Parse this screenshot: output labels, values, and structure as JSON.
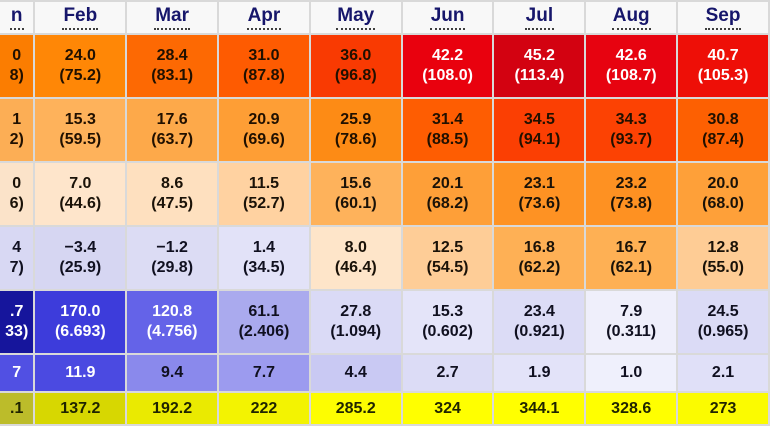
{
  "table": {
    "columns": [
      {
        "id": "jan",
        "label": "n",
        "clipped": "left"
      },
      {
        "id": "feb",
        "label": "Feb"
      },
      {
        "id": "mar",
        "label": "Mar"
      },
      {
        "id": "apr",
        "label": "Apr"
      },
      {
        "id": "may",
        "label": "May"
      },
      {
        "id": "jun",
        "label": "Jun"
      },
      {
        "id": "jul",
        "label": "Jul"
      },
      {
        "id": "aug",
        "label": "Aug"
      },
      {
        "id": "sep",
        "label": "Sep",
        "clipped": "right"
      }
    ],
    "rows": [
      {
        "id": "r1",
        "size": "tall",
        "cells": [
          {
            "line1": "0",
            "line2": "8)",
            "bg": "#fb7d01",
            "fg": "#201000"
          },
          {
            "line1": "24.0",
            "line2": "(75.2)",
            "bg": "#ff8706",
            "fg": "#201000"
          },
          {
            "line1": "28.4",
            "line2": "(83.1)",
            "bg": "#fd6903",
            "fg": "#201000"
          },
          {
            "line1": "31.0",
            "line2": "(87.8)",
            "bg": "#fe5b01",
            "fg": "#201000"
          },
          {
            "line1": "36.0",
            "line2": "(96.8)",
            "bg": "#f93a02",
            "fg": "#201000"
          },
          {
            "line1": "42.2",
            "line2": "(108.0)",
            "bg": "#e9010e",
            "fg": "#ffffff"
          },
          {
            "line1": "45.2",
            "line2": "(113.4)",
            "bg": "#d30211",
            "fg": "#ffffff"
          },
          {
            "line1": "42.6",
            "line2": "(108.7)",
            "bg": "#e70310",
            "fg": "#ffffff"
          },
          {
            "line1": "40.7",
            "line2": "(105.3)",
            "bg": "#ee0f07",
            "fg": "#ffffff"
          }
        ]
      },
      {
        "id": "r2",
        "size": "tall",
        "cells": [
          {
            "line1": "1",
            "line2": "2)",
            "bg": "#fcae55",
            "fg": "#201000"
          },
          {
            "line1": "15.3",
            "line2": "(59.5)",
            "bg": "#feb25b",
            "fg": "#201000"
          },
          {
            "line1": "17.6",
            "line2": "(63.7)",
            "bg": "#fda94a",
            "fg": "#201000"
          },
          {
            "line1": "20.9",
            "line2": "(69.6)",
            "bg": "#fe9e35",
            "fg": "#201000"
          },
          {
            "line1": "25.9",
            "line2": "(78.6)",
            "bg": "#fd8b15",
            "fg": "#201000"
          },
          {
            "line1": "31.4",
            "line2": "(88.5)",
            "bg": "#fe5d02",
            "fg": "#201000"
          },
          {
            "line1": "34.5",
            "line2": "(94.1)",
            "bg": "#fb3f03",
            "fg": "#201000"
          },
          {
            "line1": "34.3",
            "line2": "(93.7)",
            "bg": "#fc4203",
            "fg": "#201000"
          },
          {
            "line1": "30.8",
            "line2": "(87.4)",
            "bg": "#fd6002",
            "fg": "#201000"
          }
        ]
      },
      {
        "id": "r3",
        "size": "tall",
        "cells": [
          {
            "line1": "0",
            "line2": "6)",
            "bg": "#fbe3c9",
            "fg": "#1a1208"
          },
          {
            "line1": "7.0",
            "line2": "(44.6)",
            "bg": "#fee5cb",
            "fg": "#1a1208"
          },
          {
            "line1": "8.6",
            "line2": "(47.5)",
            "bg": "#fee0bf",
            "fg": "#1a1208"
          },
          {
            "line1": "11.5",
            "line2": "(52.7)",
            "bg": "#ffd2a1",
            "fg": "#1a1208"
          },
          {
            "line1": "15.6",
            "line2": "(60.1)",
            "bg": "#feb25b",
            "fg": "#1a1208"
          },
          {
            "line1": "20.1",
            "line2": "(68.2)",
            "bg": "#fe9f38",
            "fg": "#1a1208"
          },
          {
            "line1": "23.1",
            "line2": "(73.6)",
            "bg": "#fe9223",
            "fg": "#1a1208"
          },
          {
            "line1": "23.2",
            "line2": "(73.8)",
            "bg": "#fe9122",
            "fg": "#1a1208"
          },
          {
            "line1": "20.0",
            "line2": "(68.0)",
            "bg": "#fea039",
            "fg": "#1a1208"
          }
        ]
      },
      {
        "id": "r4",
        "size": "tall",
        "cells": [
          {
            "line1": "4",
            "line2": "7)",
            "bg": "#d8d8f3",
            "fg": "#101020"
          },
          {
            "line1": "−3.4",
            "line2": "(25.9)",
            "bg": "#d6d6f2",
            "fg": "#101020"
          },
          {
            "line1": "−1.2",
            "line2": "(29.8)",
            "bg": "#dcdcf4",
            "fg": "#101020"
          },
          {
            "line1": "1.4",
            "line2": "(34.5)",
            "bg": "#e2e2f8",
            "fg": "#101020"
          },
          {
            "line1": "8.0",
            "line2": "(46.4)",
            "bg": "#fee5c9",
            "fg": "#1a1208"
          },
          {
            "line1": "12.5",
            "line2": "(54.5)",
            "bg": "#fecd97",
            "fg": "#1a1208"
          },
          {
            "line1": "16.8",
            "line2": "(62.2)",
            "bg": "#feb055",
            "fg": "#1a1208"
          },
          {
            "line1": "16.7",
            "line2": "(62.1)",
            "bg": "#feb054",
            "fg": "#1a1208"
          },
          {
            "line1": "12.8",
            "line2": "(55.0)",
            "bg": "#fecc95",
            "fg": "#1a1208"
          }
        ]
      },
      {
        "id": "r5",
        "size": "tall",
        "cells": [
          {
            "line1": ".7",
            "line2": "33)",
            "bg": "#16159c",
            "fg": "#ffffff"
          },
          {
            "line1": "170.0",
            "line2": "(6.693)",
            "bg": "#3d3cdb",
            "fg": "#ffffff"
          },
          {
            "line1": "120.8",
            "line2": "(4.756)",
            "bg": "#6463e8",
            "fg": "#ffffff"
          },
          {
            "line1": "61.1",
            "line2": "(2.406)",
            "bg": "#aaaaee",
            "fg": "#101020"
          },
          {
            "line1": "27.8",
            "line2": "(1.094)",
            "bg": "#dadaf6",
            "fg": "#101020"
          },
          {
            "line1": "15.3",
            "line2": "(0.602)",
            "bg": "#e4e4f9",
            "fg": "#101020"
          },
          {
            "line1": "23.4",
            "line2": "(0.921)",
            "bg": "#dcdcf6",
            "fg": "#101020"
          },
          {
            "line1": "7.9",
            "line2": "(0.311)",
            "bg": "#efeffb",
            "fg": "#101020"
          },
          {
            "line1": "24.5",
            "line2": "(0.965)",
            "bg": "#dbdbf6",
            "fg": "#101020"
          }
        ]
      },
      {
        "id": "r6",
        "size": "mid",
        "cells": [
          {
            "line1": "7",
            "bg": "#5150e3",
            "fg": "#ffffff"
          },
          {
            "line1": "11.9",
            "bg": "#4b4ae1",
            "fg": "#ffffff"
          },
          {
            "line1": "9.4",
            "bg": "#8a89ec",
            "fg": "#101020"
          },
          {
            "line1": "7.7",
            "bg": "#9c9bef",
            "fg": "#101020"
          },
          {
            "line1": "4.4",
            "bg": "#c9c9f3",
            "fg": "#101020"
          },
          {
            "line1": "2.7",
            "bg": "#dcdcf6",
            "fg": "#101020"
          },
          {
            "line1": "1.9",
            "bg": "#e3e3f9",
            "fg": "#101020"
          },
          {
            "line1": "1.0",
            "bg": "#eff0fc",
            "fg": "#101020"
          },
          {
            "line1": "2.1",
            "bg": "#e0e0f8",
            "fg": "#101020"
          }
        ]
      },
      {
        "id": "r7",
        "size": "short",
        "cells": [
          {
            "line1": ".1",
            "bg": "#bcbc2a",
            "fg": "#1f2400"
          },
          {
            "line1": "137.2",
            "bg": "#d7d701",
            "fg": "#1f2400"
          },
          {
            "line1": "192.2",
            "bg": "#eaea01",
            "fg": "#1f2400"
          },
          {
            "line1": "222",
            "bg": "#f3f301",
            "fg": "#1f2400"
          },
          {
            "line1": "285.2",
            "bg": "#fdfd01",
            "fg": "#1f2400"
          },
          {
            "line1": "324",
            "bg": "#ffff00",
            "fg": "#1f2400"
          },
          {
            "line1": "344.1",
            "bg": "#ffff00",
            "fg": "#1f2400"
          },
          {
            "line1": "328.6",
            "bg": "#ffff00",
            "fg": "#1f2400"
          },
          {
            "line1": "273",
            "bg": "#fbfb00",
            "fg": "#1f2400"
          }
        ]
      }
    ]
  },
  "chart_data": {
    "type": "table",
    "title": "Climate data table (cropped: Jan and Sep columns partially visible, row labels off-screen)",
    "months_full": [
      "Feb",
      "Mar",
      "Apr",
      "May",
      "Jun",
      "Jul",
      "Aug",
      "Sep"
    ],
    "rows": [
      {
        "id": "r1",
        "primary": [
          24.0,
          28.4,
          31.0,
          36.0,
          42.2,
          45.2,
          42.6,
          40.7
        ],
        "secondary": [
          75.2,
          83.1,
          87.8,
          96.8,
          108.0,
          113.4,
          108.7,
          105.3
        ]
      },
      {
        "id": "r2",
        "primary": [
          15.3,
          17.6,
          20.9,
          25.9,
          31.4,
          34.5,
          34.3,
          30.8
        ],
        "secondary": [
          59.5,
          63.7,
          69.6,
          78.6,
          88.5,
          94.1,
          93.7,
          87.4
        ]
      },
      {
        "id": "r3",
        "primary": [
          7.0,
          8.6,
          11.5,
          15.6,
          20.1,
          23.1,
          23.2,
          20.0
        ],
        "secondary": [
          44.6,
          47.5,
          52.7,
          60.1,
          68.2,
          73.6,
          73.8,
          68.0
        ]
      },
      {
        "id": "r4",
        "primary": [
          -3.4,
          -1.2,
          1.4,
          8.0,
          12.5,
          16.8,
          16.7,
          12.8
        ],
        "secondary": [
          25.9,
          29.8,
          34.5,
          46.4,
          54.5,
          62.2,
          62.1,
          55.0
        ]
      },
      {
        "id": "r5",
        "primary": [
          170.0,
          120.8,
          61.1,
          27.8,
          15.3,
          23.4,
          7.9,
          24.5
        ],
        "secondary": [
          6.693,
          4.756,
          2.406,
          1.094,
          0.602,
          0.921,
          0.311,
          0.965
        ]
      },
      {
        "id": "r6",
        "primary": [
          11.9,
          9.4,
          7.7,
          4.4,
          2.7,
          1.9,
          1.0,
          2.1
        ]
      },
      {
        "id": "r7",
        "primary": [
          137.2,
          192.2,
          222,
          285.2,
          324,
          344.1,
          328.6,
          273
        ]
      }
    ],
    "layout_hints": {
      "jan_column_fragments_visible": [
        "0|8)",
        "1|2)",
        "0|6)",
        "4|7)",
        ".7|33)",
        "7",
        ".1"
      ],
      "color_coding": "warm orange-red for temperature rows, blue scale for precipitation rows, yellow for sunshine row"
    }
  }
}
